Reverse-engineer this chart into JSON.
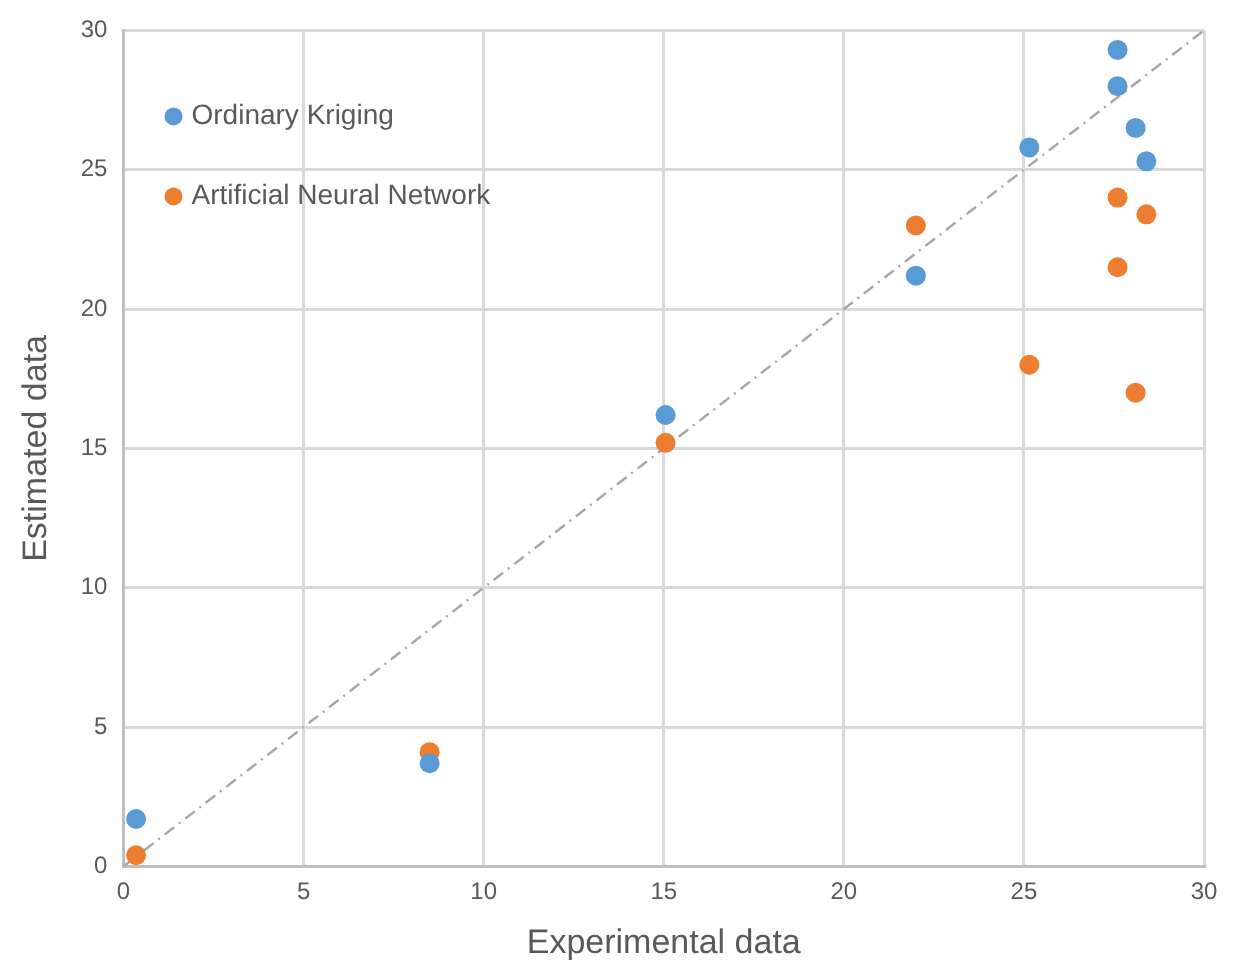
{
  "chart_data": {
    "type": "scatter",
    "xlabel": "Experimental data",
    "ylabel": "Estimated data",
    "xlim": [
      0,
      30
    ],
    "xticks": [
      0,
      5,
      10,
      15,
      20,
      25,
      30
    ],
    "ylim": [
      0,
      30
    ],
    "yticks": [
      0,
      5,
      10,
      15,
      20,
      25,
      30
    ],
    "grid": true,
    "legend": "top left",
    "marker": "circle",
    "series": [
      {
        "name": "Ordinary Kriging",
        "color": "#5b9bd5",
        "x": [
          0.35,
          8.5,
          15.05,
          22,
          25.15,
          27.6,
          27.6,
          28.1,
          28.4
        ],
        "values": [
          1.7,
          3.7,
          16.2,
          21.2,
          25.8,
          29.3,
          28,
          26.5,
          25.3
        ]
      },
      {
        "name": "Artificial Neural Network",
        "color": "#ed7d31",
        "x": [
          0.35,
          8.5,
          15.05,
          22,
          25.15,
          27.6,
          27.6,
          28.4,
          28.1
        ],
        "values": [
          0.4,
          4.1,
          15.2,
          23,
          18,
          24,
          21.5,
          23.4,
          17
        ]
      },
      {
        "type": "line",
        "color": "#a6a6a6",
        "line_style": "dashed",
        "marker": "none",
        "x": [
          0,
          30
        ],
        "values": [
          0,
          30
        ]
      }
    ]
  }
}
